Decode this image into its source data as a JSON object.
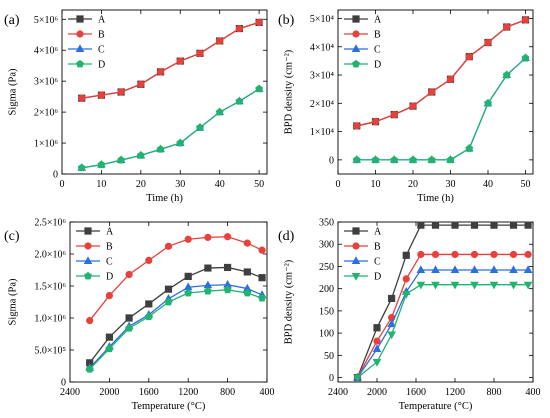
{
  "colors": {
    "A": "#3f3f3f",
    "B": "#e8403a",
    "C": "#2b6fe0",
    "D": "#22b370"
  },
  "chart_data": [
    {
      "type": "line",
      "panel_label": "(a)",
      "xlabel": "Time (h)",
      "ylabel": "Sigma (Pa)",
      "xlim": [
        0,
        52
      ],
      "ylim": [
        0,
        5.3
      ],
      "xticks": [
        0,
        10,
        20,
        30,
        40,
        50
      ],
      "xtick_labels": [
        "0",
        "10",
        "20",
        "30",
        "40",
        "50"
      ],
      "yticks": [
        0,
        1,
        2,
        3,
        4,
        5
      ],
      "ytick_labels": [
        "0",
        "1×10⁶",
        "2×10⁶",
        "3×10⁶",
        "4×10⁶",
        "5×10⁶"
      ],
      "x_reversed": false,
      "grid": false,
      "legend_position": "top-left",
      "x": [
        5,
        10,
        15,
        20,
        25,
        30,
        35,
        40,
        45,
        50
      ],
      "series": [
        {
          "name": "A",
          "marker": "square",
          "values": [
            2.45,
            2.55,
            2.65,
            2.9,
            3.3,
            3.65,
            3.9,
            4.3,
            4.7,
            4.9
          ]
        },
        {
          "name": "B",
          "marker": "circle",
          "values": [
            2.45,
            2.55,
            2.65,
            2.9,
            3.3,
            3.65,
            3.9,
            4.3,
            4.7,
            4.9
          ]
        },
        {
          "name": "C",
          "marker": "triangle-up",
          "values": [
            0.2,
            0.3,
            0.45,
            0.6,
            0.8,
            1.0,
            1.5,
            2.0,
            2.35,
            2.75
          ]
        },
        {
          "name": "D",
          "marker": "pentagon",
          "values": [
            0.2,
            0.3,
            0.45,
            0.6,
            0.8,
            1.0,
            1.5,
            2.0,
            2.35,
            2.75
          ]
        }
      ]
    },
    {
      "type": "line",
      "panel_label": "(b)",
      "xlabel": "Time (h)",
      "ylabel": "BPD density (cm⁻²)",
      "xlim": [
        0,
        52
      ],
      "ylim": [
        -0.5,
        5.3
      ],
      "xticks": [
        0,
        10,
        20,
        30,
        40,
        50
      ],
      "xtick_labels": [
        "0",
        "10",
        "20",
        "30",
        "40",
        "50"
      ],
      "yticks": [
        0,
        1,
        2,
        3,
        4,
        5
      ],
      "ytick_labels": [
        "0",
        "1×10⁴",
        "2×10⁴",
        "3×10⁴",
        "4×10⁴",
        "5×10⁴"
      ],
      "x_reversed": false,
      "grid": false,
      "legend_position": "top-left",
      "x": [
        5,
        10,
        15,
        20,
        25,
        30,
        35,
        40,
        45,
        50
      ],
      "series": [
        {
          "name": "A",
          "marker": "square",
          "values": [
            1.2,
            1.35,
            1.6,
            1.9,
            2.4,
            2.85,
            3.65,
            4.15,
            4.7,
            4.95
          ]
        },
        {
          "name": "B",
          "marker": "circle",
          "values": [
            1.2,
            1.35,
            1.6,
            1.9,
            2.4,
            2.85,
            3.65,
            4.15,
            4.7,
            4.95
          ]
        },
        {
          "name": "C",
          "marker": "triangle-up",
          "values": [
            0,
            0,
            0,
            0,
            0,
            0,
            0.4,
            2.0,
            3.0,
            3.6
          ]
        },
        {
          "name": "D",
          "marker": "pentagon",
          "values": [
            0,
            0,
            0,
            0,
            0,
            0,
            0.4,
            2.0,
            3.0,
            3.6
          ]
        }
      ]
    },
    {
      "type": "line",
      "panel_label": "(c)",
      "xlabel": "Temperature (°C)",
      "ylabel": "Sigma (Pa)",
      "xlim": [
        2400,
        400
      ],
      "ylim": [
        0,
        2.5
      ],
      "xticks": [
        2400,
        2000,
        1600,
        1200,
        800,
        400
      ],
      "xtick_labels": [
        "2400",
        "2000",
        "1600",
        "1200",
        "800",
        "400"
      ],
      "yticks": [
        0,
        0.5,
        1.0,
        1.5,
        2.0,
        2.5
      ],
      "ytick_labels": [
        "0",
        "5.0×10⁵",
        "1.0×10⁶",
        "1.5×10⁶",
        "2.0×10⁶",
        "2.5×10⁶"
      ],
      "x_reversed": true,
      "grid": false,
      "legend_position": "top-left",
      "x": [
        2200,
        2000,
        1800,
        1600,
        1400,
        1200,
        1000,
        800,
        600,
        450
      ],
      "series": [
        {
          "name": "A",
          "marker": "square",
          "values": [
            0.3,
            0.7,
            1.0,
            1.22,
            1.45,
            1.65,
            1.78,
            1.79,
            1.72,
            1.63
          ]
        },
        {
          "name": "B",
          "marker": "circle",
          "values": [
            0.96,
            1.35,
            1.68,
            1.9,
            2.12,
            2.23,
            2.26,
            2.27,
            2.17,
            2.06
          ]
        },
        {
          "name": "C",
          "marker": "triangle-up",
          "values": [
            0.22,
            0.55,
            0.87,
            1.05,
            1.3,
            1.48,
            1.51,
            1.52,
            1.46,
            1.36
          ]
        },
        {
          "name": "D",
          "marker": "pentagon",
          "values": [
            0.2,
            0.52,
            0.84,
            1.02,
            1.25,
            1.39,
            1.42,
            1.44,
            1.39,
            1.31
          ]
        }
      ]
    },
    {
      "type": "line",
      "panel_label": "(d)",
      "xlabel": "Temperature (°C)",
      "ylabel": "BPD density (cm⁻²)",
      "xlim": [
        2400,
        400
      ],
      "ylim": [
        -10,
        350
      ],
      "xticks": [
        2400,
        2000,
        1600,
        1200,
        800,
        400
      ],
      "xtick_labels": [
        "2400",
        "2000",
        "1600",
        "1200",
        "800",
        "400"
      ],
      "yticks": [
        0,
        50,
        100,
        150,
        200,
        250,
        300,
        350
      ],
      "ytick_labels": [
        "0",
        "50",
        "100",
        "150",
        "200",
        "250",
        "300",
        "350"
      ],
      "x_reversed": true,
      "grid": false,
      "legend_position": "top-left",
      "x": [
        2200,
        2000,
        1850,
        1700,
        1550,
        1400,
        1200,
        1000,
        800,
        600,
        450
      ],
      "series": [
        {
          "name": "A",
          "marker": "square",
          "values": [
            0,
            112,
            178,
            275,
            343,
            343,
            343,
            343,
            343,
            343,
            343
          ]
        },
        {
          "name": "B",
          "marker": "circle",
          "values": [
            0,
            82,
            135,
            222,
            277,
            277,
            277,
            277,
            277,
            277,
            277
          ]
        },
        {
          "name": "C",
          "marker": "triangle-up",
          "values": [
            0,
            64,
            120,
            193,
            242,
            242,
            242,
            242,
            242,
            242,
            242
          ]
        },
        {
          "name": "D",
          "marker": "triangle-down",
          "values": [
            0,
            35,
            97,
            188,
            209,
            209,
            209,
            209,
            209,
            209,
            209
          ]
        }
      ]
    }
  ]
}
